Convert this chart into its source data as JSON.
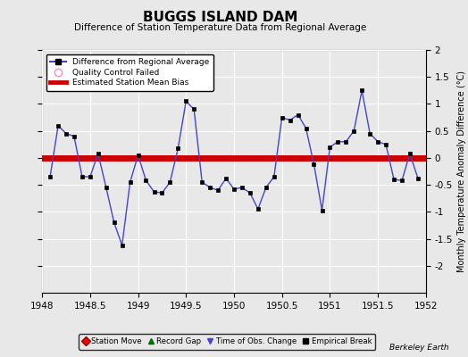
{
  "title": "BUGGS ISLAND DAM",
  "subtitle": "Difference of Station Temperature Data from Regional Average",
  "ylabel": "Monthly Temperature Anomaly Difference (°C)",
  "watermark": "Berkeley Earth",
  "xlim": [
    1948,
    1952
  ],
  "ylim": [
    -2.5,
    2.0
  ],
  "yticks": [
    -2.0,
    -1.5,
    -1.0,
    -0.5,
    0.0,
    0.5,
    1.0,
    1.5,
    2.0
  ],
  "xticks": [
    1948,
    1948.5,
    1949,
    1949.5,
    1950,
    1950.5,
    1951,
    1951.5,
    1952
  ],
  "mean_bias": 0.0,
  "bg_color": "#e8e8e8",
  "line_color": "#4444cc",
  "marker_color": "#000000",
  "bias_color": "#cc0000",
  "qc_color": "#ff88cc",
  "grid_color": "#ffffff",
  "x": [
    1948.083,
    1948.167,
    1948.25,
    1948.333,
    1948.417,
    1948.5,
    1948.583,
    1948.667,
    1948.75,
    1948.833,
    1948.917,
    1949.0,
    1949.083,
    1949.167,
    1949.25,
    1949.333,
    1949.417,
    1949.5,
    1949.583,
    1949.667,
    1949.75,
    1949.833,
    1949.917,
    1950.0,
    1950.083,
    1950.167,
    1950.25,
    1950.333,
    1950.417,
    1950.5,
    1950.583,
    1950.667,
    1950.75,
    1950.833,
    1950.917,
    1951.0,
    1951.083,
    1951.167,
    1951.25,
    1951.333,
    1951.417,
    1951.5,
    1951.583,
    1951.667,
    1951.75,
    1951.833,
    1951.917
  ],
  "y": [
    -0.35,
    0.6,
    0.45,
    0.4,
    -0.35,
    -0.35,
    0.08,
    -0.55,
    -1.2,
    -1.62,
    -0.45,
    0.05,
    -0.42,
    -0.63,
    -0.65,
    -0.45,
    0.18,
    1.05,
    0.9,
    -0.45,
    -0.55,
    -0.6,
    -0.38,
    -0.58,
    -0.55,
    -0.65,
    -0.95,
    -0.55,
    -0.35,
    0.75,
    0.7,
    0.8,
    0.55,
    -0.12,
    -0.97,
    0.2,
    0.3,
    0.3,
    0.5,
    1.25,
    0.45,
    0.3,
    0.25,
    -0.4,
    -0.42,
    0.08,
    -0.38
  ]
}
